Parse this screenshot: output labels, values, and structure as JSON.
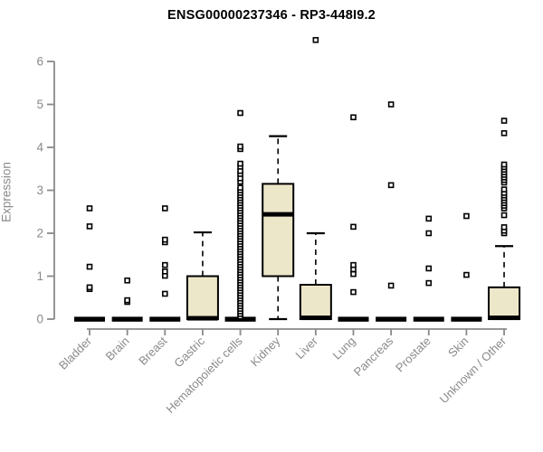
{
  "chart_data": {
    "type": "boxplot",
    "title": "ENSG00000237346 - RP3-448I9.2",
    "ylabel": "Expression",
    "xlabel": "",
    "ylim": [
      0,
      6.6
    ],
    "yticks": [
      0,
      1,
      2,
      3,
      4,
      5,
      6
    ],
    "grid": false,
    "legend": "none",
    "colors": {
      "box_fill": "#EDE7CA",
      "box_stroke": "#000000",
      "axis": "#8A8A8A",
      "tick_label": "#8A8A8A",
      "title": "#000000"
    },
    "categories": [
      "Bladder",
      "Brain",
      "Breast",
      "Gastric",
      "Hematopoietic cells",
      "Kidney",
      "Liver",
      "Lung",
      "Pancreas",
      "Prostate",
      "Skin",
      "Unknown / Other"
    ],
    "series": [
      {
        "name": "Bladder",
        "q1": 0,
        "median": 0,
        "q3": 0,
        "whisker_low": 0,
        "whisker_high": 0,
        "outliers": [
          0.7,
          0.74,
          1.22,
          2.16,
          2.58
        ]
      },
      {
        "name": "Brain",
        "q1": 0,
        "median": 0,
        "q3": 0,
        "whisker_low": 0,
        "whisker_high": 0,
        "outliers": [
          0.4,
          0.44,
          0.9
        ]
      },
      {
        "name": "Breast",
        "q1": 0,
        "median": 0,
        "q3": 0,
        "whisker_low": 0,
        "whisker_high": 0,
        "outliers": [
          0.59,
          1.01,
          1.11,
          1.26,
          1.79,
          1.85,
          2.58
        ]
      },
      {
        "name": "Gastric",
        "q1": 0,
        "median": 0.02,
        "q3": 1.0,
        "whisker_low": 0,
        "whisker_high": 2.02,
        "outliers": []
      },
      {
        "name": "Hematopoietic cells",
        "q1": 0,
        "median": 0,
        "q3": 0,
        "whisker_low": 0,
        "whisker_high": 0,
        "outliers": [
          0.06,
          0.12,
          0.18,
          0.24,
          0.3,
          0.36,
          0.42,
          0.48,
          0.54,
          0.6,
          0.66,
          0.72,
          0.78,
          0.84,
          0.9,
          0.96,
          1.02,
          1.08,
          1.14,
          1.2,
          1.26,
          1.32,
          1.38,
          1.44,
          1.5,
          1.56,
          1.62,
          1.68,
          1.74,
          1.8,
          1.86,
          1.92,
          1.98,
          2.04,
          2.1,
          2.16,
          2.22,
          2.28,
          2.34,
          2.4,
          2.46,
          2.52,
          2.58,
          2.64,
          2.7,
          2.76,
          2.82,
          2.88,
          2.94,
          3.0,
          3.06,
          3.2,
          3.28,
          3.38,
          3.45,
          3.55,
          3.62,
          3.96,
          4.02,
          4.8
        ]
      },
      {
        "name": "Kidney",
        "q1": 1.0,
        "median": 2.44,
        "q3": 3.15,
        "whisker_low": 0,
        "whisker_high": 4.26,
        "outliers": []
      },
      {
        "name": "Liver",
        "q1": 0,
        "median": 0.03,
        "q3": 0.8,
        "whisker_low": 0,
        "whisker_high": 2.0,
        "outliers": [
          6.5
        ]
      },
      {
        "name": "Lung",
        "q1": 0,
        "median": 0,
        "q3": 0,
        "whisker_low": 0,
        "whisker_high": 0,
        "outliers": [
          0.63,
          1.05,
          1.16,
          1.26,
          2.15,
          4.7
        ]
      },
      {
        "name": "Pancreas",
        "q1": 0,
        "median": 0,
        "q3": 0,
        "whisker_low": 0,
        "whisker_high": 0,
        "outliers": [
          0.78,
          3.12,
          5.0
        ]
      },
      {
        "name": "Prostate",
        "q1": 0,
        "median": 0,
        "q3": 0,
        "whisker_low": 0,
        "whisker_high": 0,
        "outliers": [
          0.84,
          1.18,
          2.0,
          2.34
        ]
      },
      {
        "name": "Skin",
        "q1": 0,
        "median": 0,
        "q3": 0,
        "whisker_low": 0,
        "whisker_high": 0,
        "outliers": [
          1.03,
          2.4
        ]
      },
      {
        "name": "Unknown / Other",
        "q1": 0,
        "median": 0.03,
        "q3": 0.74,
        "whisker_low": 0,
        "whisker_high": 1.7,
        "outliers": [
          2.0,
          2.06,
          2.14,
          2.42,
          2.58,
          2.64,
          2.7,
          2.76,
          2.82,
          2.88,
          2.94,
          3.02,
          3.18,
          3.24,
          3.3,
          3.36,
          3.42,
          3.48,
          3.54,
          3.6,
          4.33,
          4.62
        ]
      }
    ]
  }
}
